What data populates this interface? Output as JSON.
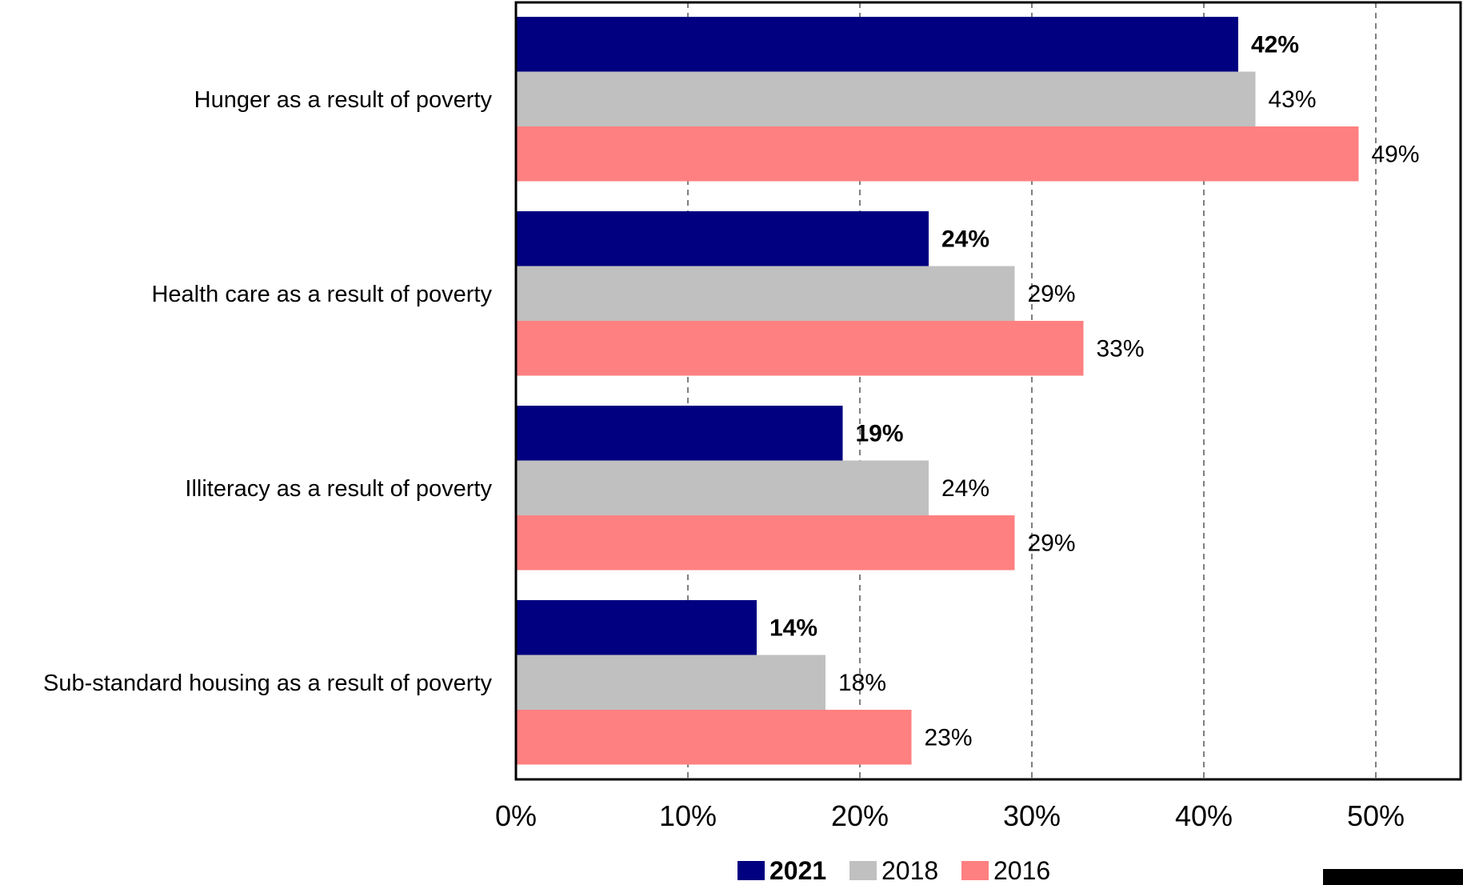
{
  "chart_data": {
    "type": "bar",
    "orientation": "horizontal",
    "categories": [
      "Hunger as a result of poverty",
      "Health care as a result of poverty",
      "Illiteracy as a result of poverty",
      "Sub-standard housing as a result of poverty"
    ],
    "series": [
      {
        "name": "2021",
        "values": [
          42,
          24,
          19,
          14
        ],
        "labels": [
          "42%",
          "24%",
          "19%",
          "14%"
        ],
        "color": "#000080",
        "emphasis": true
      },
      {
        "name": "2018",
        "values": [
          43,
          29,
          24,
          18
        ],
        "labels": [
          "43%",
          "29%",
          "24%",
          "18%"
        ],
        "color": "#c0c0c0",
        "emphasis": false
      },
      {
        "name": "2016",
        "values": [
          49,
          33,
          29,
          23
        ],
        "labels": [
          "49%",
          "33%",
          "29%",
          "23%"
        ],
        "color": "#ff8080",
        "emphasis": false
      }
    ],
    "xlim": [
      0,
      55
    ],
    "xticks": [
      0,
      10,
      20,
      30,
      40,
      50
    ],
    "xtick_labels": [
      "0%",
      "10%",
      "20%",
      "30%",
      "40%",
      "50%"
    ],
    "grid": "vertical dashed",
    "legend": "bottom",
    "title": "",
    "xlabel": "",
    "ylabel": ""
  }
}
